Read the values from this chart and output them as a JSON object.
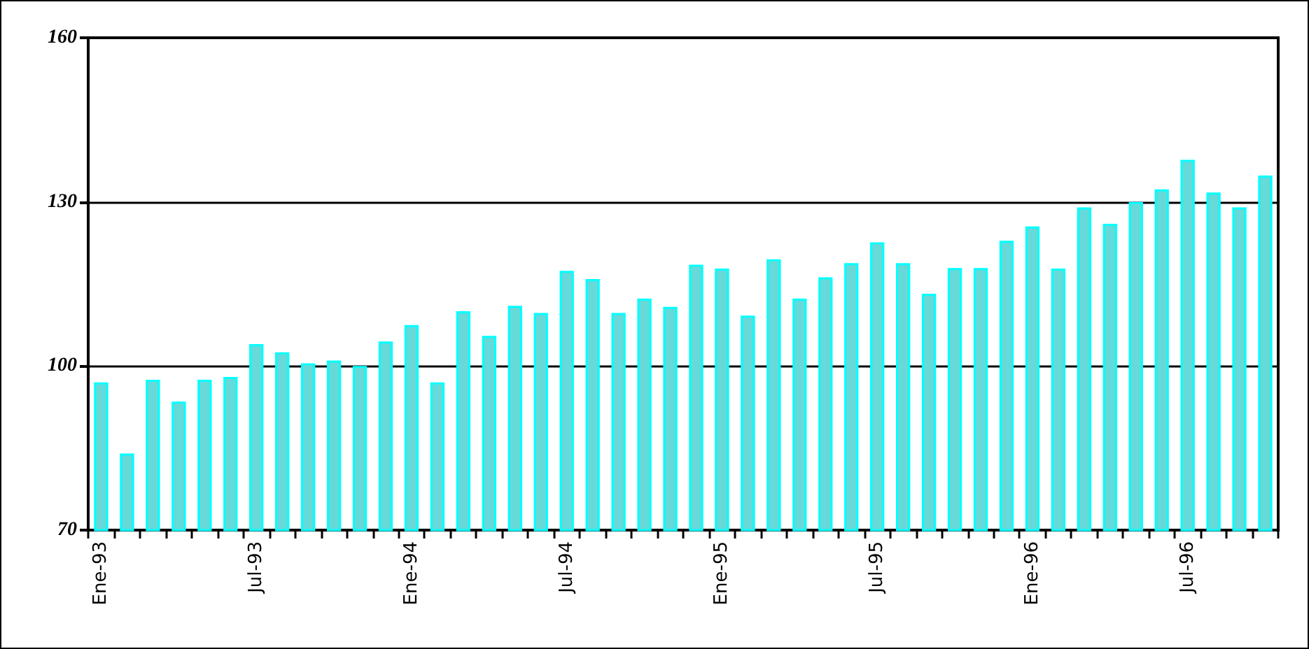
{
  "chart_data": {
    "type": "bar",
    "categories": [
      "Ene-93",
      null,
      null,
      null,
      null,
      null,
      "Jul-93",
      null,
      null,
      null,
      null,
      null,
      "Ene-94",
      null,
      null,
      null,
      null,
      null,
      "Jul-94",
      null,
      null,
      null,
      null,
      null,
      "Ene-95",
      null,
      null,
      null,
      null,
      null,
      "Jul-95",
      null,
      null,
      null,
      null,
      null,
      "Ene-96",
      null,
      null,
      null,
      null,
      null,
      "Jul-96",
      null,
      null,
      null
    ],
    "values": [
      97,
      84,
      97.5,
      93.5,
      97.5,
      98,
      104,
      102.5,
      100.5,
      101,
      100,
      104.5,
      107.5,
      97,
      110,
      105.5,
      111,
      109.7,
      117.4,
      115.9,
      109.7,
      112.3,
      110.8,
      118.5,
      117.8,
      109.2,
      119.5,
      112.3,
      116.2,
      118.8,
      122.6,
      118.8,
      113.2,
      117.9,
      117.9,
      122.9,
      125.5,
      117.8,
      129,
      126,
      130,
      132.3,
      137.7,
      131.7,
      129,
      134.8
    ],
    "color": "#66d9d9",
    "ylim": [
      70,
      160
    ],
    "yticks": [
      70,
      100,
      130,
      160
    ],
    "grid": "y"
  }
}
